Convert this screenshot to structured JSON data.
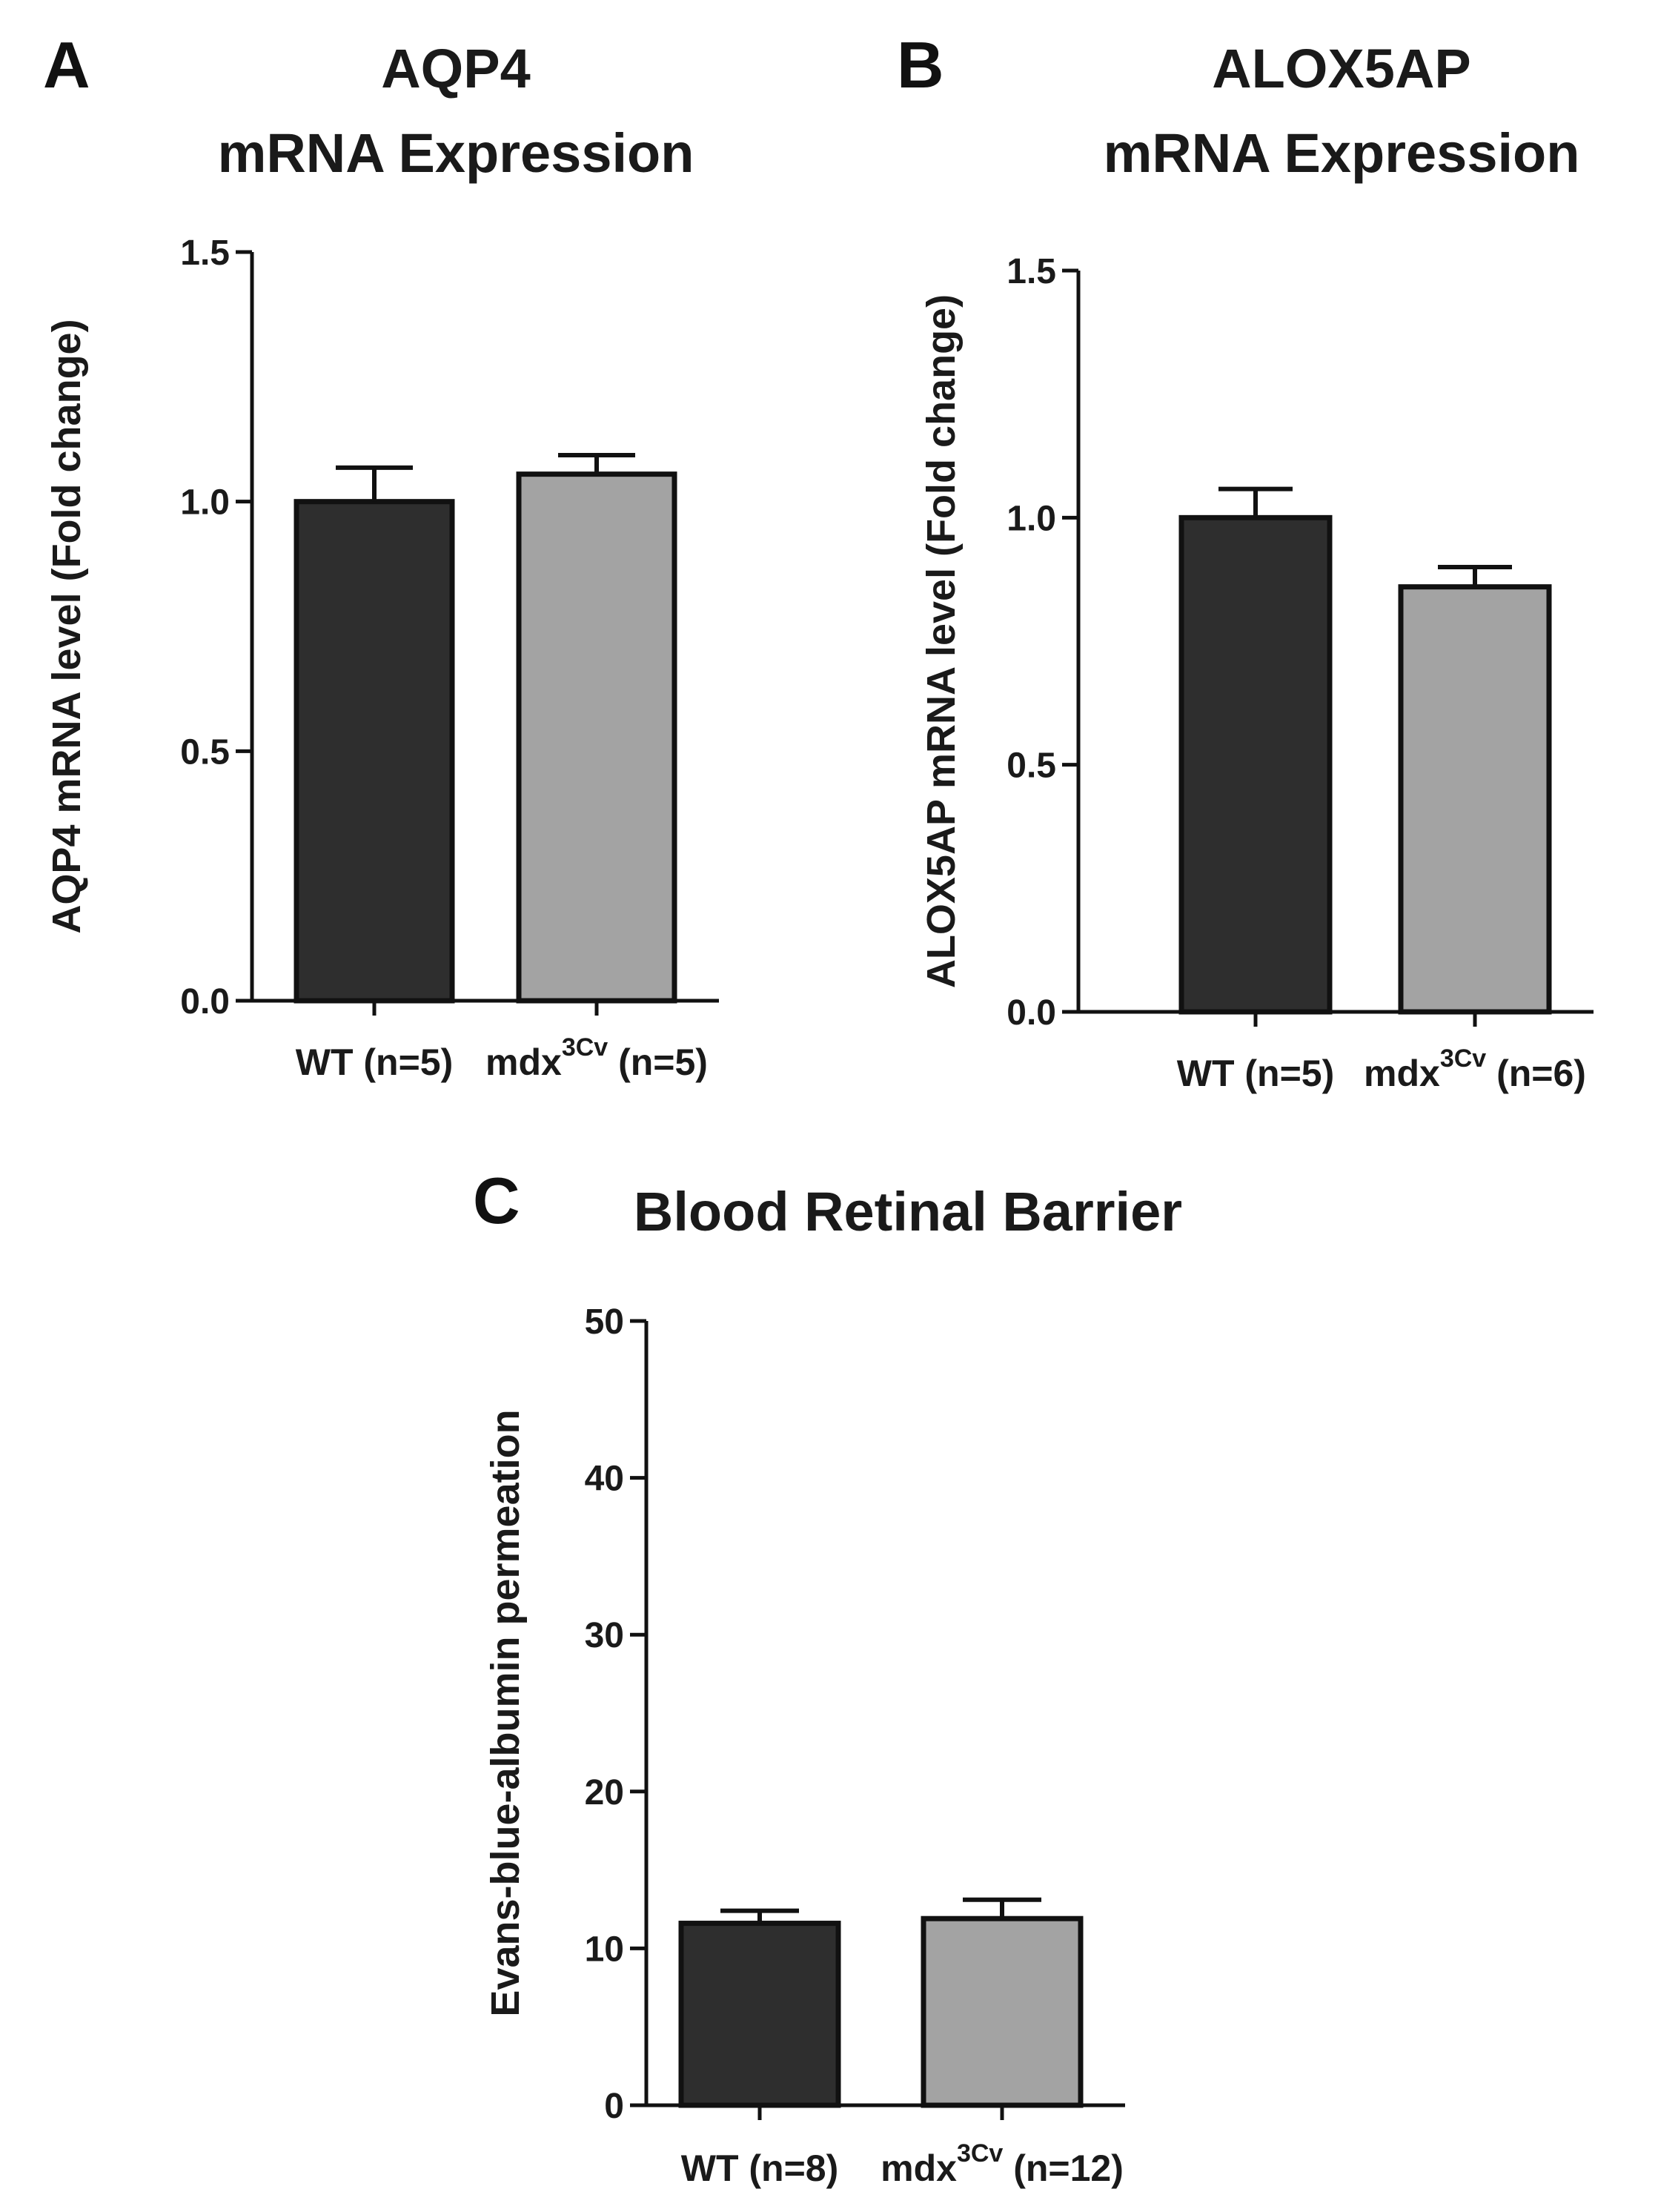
{
  "chart_data": [
    {
      "panel": "A",
      "type": "bar",
      "title_lines": [
        "AQP4",
        "mRNA Expression"
      ],
      "ylabel": "AQP4 mRNA level (Fold change)",
      "ylim": [
        0,
        1.5
      ],
      "yticks": [
        "0.0",
        "0.5",
        "1.0",
        "1.5"
      ],
      "ytick_values": [
        0.0,
        0.5,
        1.0,
        1.5
      ],
      "categories": [
        {
          "main": "WT (n=5)",
          "sup": "",
          "tail": ""
        },
        {
          "main": "mdx",
          "sup": "3Cv",
          "tail": " (n=5)"
        }
      ],
      "values": [
        1.0,
        1.055
      ],
      "errors": [
        0.068,
        0.038
      ],
      "colors": [
        "#2e2e2e",
        "#a3a3a3"
      ]
    },
    {
      "panel": "B",
      "type": "bar",
      "title_lines": [
        "ALOX5AP",
        "mRNA Expression"
      ],
      "ylabel": "ALOX5AP mRNA level (Fold change)",
      "ylim": [
        0,
        1.5
      ],
      "yticks": [
        "0.0",
        "0.5",
        "1.0",
        "1.5"
      ],
      "ytick_values": [
        0.0,
        0.5,
        1.0,
        1.5
      ],
      "categories": [
        {
          "main": "WT (n=5)",
          "sup": "",
          "tail": ""
        },
        {
          "main": "mdx",
          "sup": "3Cv",
          "tail": " (n=6)"
        }
      ],
      "values": [
        1.0,
        0.86
      ],
      "errors": [
        0.058,
        0.04
      ],
      "colors": [
        "#2e2e2e",
        "#a3a3a3"
      ]
    },
    {
      "panel": "C",
      "type": "bar",
      "title_lines": [
        "Blood Retinal Barrier"
      ],
      "ylabel": "Evans-blue-albumin permeation",
      "ylim": [
        0,
        50
      ],
      "yticks": [
        "0",
        "10",
        "20",
        "30",
        "40",
        "50"
      ],
      "ytick_values": [
        0,
        10,
        20,
        30,
        40,
        50
      ],
      "categories": [
        {
          "main": "WT (n=8)",
          "sup": "",
          "tail": ""
        },
        {
          "main": "mdx",
          "sup": "3Cv",
          "tail": " (n=12)"
        }
      ],
      "values": [
        11.6,
        11.9
      ],
      "errors": [
        0.8,
        1.2
      ],
      "colors": [
        "#2e2e2e",
        "#a3a3a3"
      ]
    }
  ]
}
